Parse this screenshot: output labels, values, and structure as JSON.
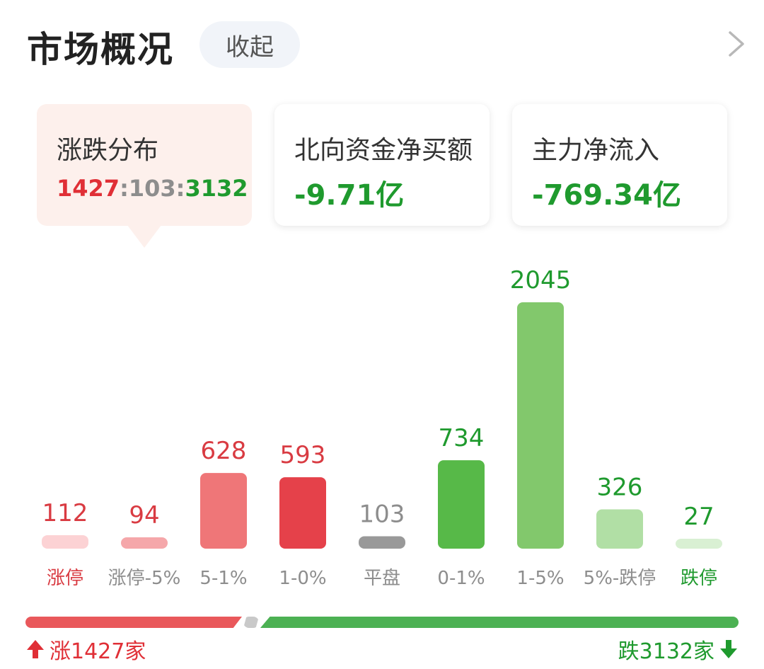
{
  "header": {
    "title": "市场概况",
    "collapse_label": "收起"
  },
  "icons": {
    "more": "chevron-right-icon",
    "up": "arrow-up-icon",
    "down": "arrow-down-icon"
  },
  "cards": [
    {
      "label": "涨跌分布",
      "up": "1427",
      "sep1": ":",
      "flat": "103",
      "sep2": ":",
      "down": "3132"
    },
    {
      "label": "北向资金净买额",
      "value": "-9.71亿"
    },
    {
      "label": "主力净流入",
      "value": "-769.34亿"
    }
  ],
  "colors": {
    "up": "#e02f36",
    "down": "#1f9a2e",
    "flat": "#8d8d8d",
    "active_card_bg": "#fdf0ec"
  },
  "chart_data": {
    "type": "bar",
    "categories": [
      "涨停",
      "涨停-5%",
      "5-1%",
      "1-0%",
      "平盘",
      "0-1%",
      "1-5%",
      "5%-跌停",
      "跌停"
    ],
    "values": [
      112,
      94,
      628,
      593,
      103,
      734,
      2045,
      326,
      27
    ],
    "bar_colors": [
      "#fcd2d4",
      "#f5a7aa",
      "#ef7678",
      "#e5414a",
      "#999999",
      "#57b948",
      "#82c86c",
      "#b1dfa5",
      "#d9f0d3"
    ],
    "value_colors": [
      "#d93b42",
      "#d93b42",
      "#d93b42",
      "#d93b42",
      "#8d8d8d",
      "#1f9a2e",
      "#1f9a2e",
      "#1f9a2e",
      "#1f9a2e"
    ],
    "label_colors": [
      "#d93b42",
      "#8d8d8d",
      "#8d8d8d",
      "#8d8d8d",
      "#8d8d8d",
      "#8d8d8d",
      "#8d8d8d",
      "#8d8d8d",
      "#1f9a2e"
    ],
    "ylim": [
      0,
      2045
    ],
    "title": "",
    "xlabel": "",
    "ylabel": ""
  },
  "summary": {
    "up_label": "涨1427家",
    "down_label": "跌3132家",
    "up_count": 1427,
    "flat_count": 103,
    "down_count": 3132
  }
}
